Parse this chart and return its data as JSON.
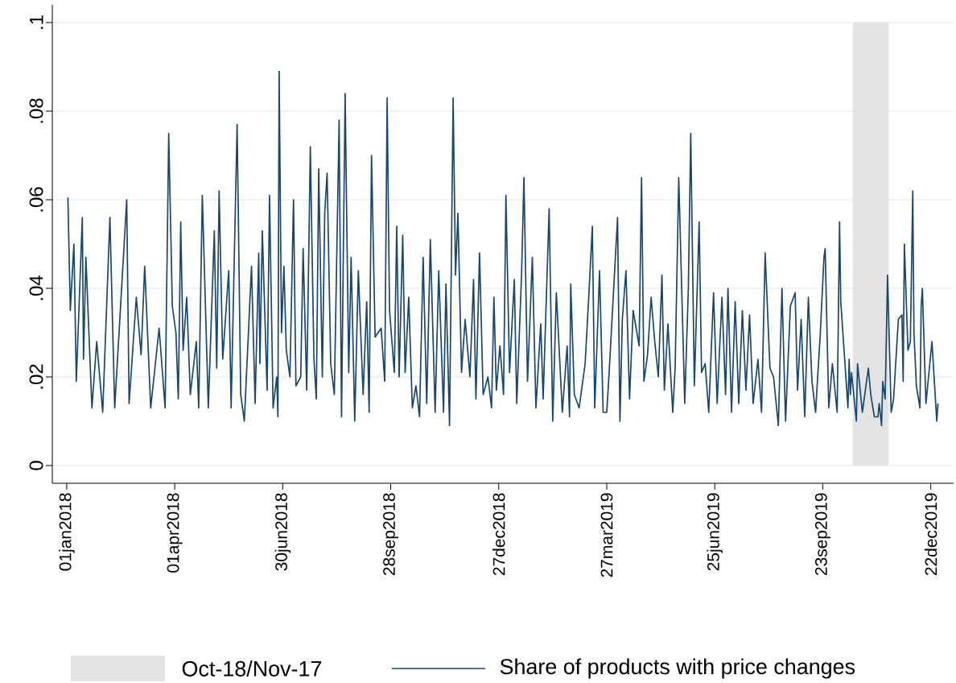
{
  "chart_data": {
    "type": "line",
    "x": [
      "2018-01-02",
      "2018-01-04",
      "2018-01-07",
      "2018-01-09",
      "2018-01-14",
      "2018-01-15",
      "2018-01-17",
      "2018-01-22",
      "2018-01-26",
      "2018-01-31",
      "2018-02-06",
      "2018-02-10",
      "2018-02-20",
      "2018-02-22",
      "2018-02-28",
      "2018-03-04",
      "2018-03-07",
      "2018-03-12",
      "2018-03-19",
      "2018-03-24",
      "2018-03-27",
      "2018-03-30",
      "2018-04-02",
      "2018-04-04",
      "2018-04-06",
      "2018-04-08",
      "2018-04-11",
      "2018-04-14",
      "2018-04-19",
      "2018-04-21",
      "2018-04-24",
      "2018-04-29",
      "2018-05-04",
      "2018-05-06",
      "2018-05-08",
      "2018-05-11",
      "2018-05-16",
      "2018-05-18",
      "2018-05-23",
      "2018-05-26",
      "2018-05-29",
      "2018-06-04",
      "2018-06-07",
      "2018-06-10",
      "2018-06-11",
      "2018-06-13",
      "2018-06-17",
      "2018-06-19",
      "2018-06-22",
      "2018-06-25",
      "2018-06-26",
      "2018-06-27",
      "2018-06-29",
      "2018-07-01",
      "2018-07-03",
      "2018-07-06",
      "2018-07-09",
      "2018-07-11",
      "2018-07-15",
      "2018-07-17",
      "2018-07-20",
      "2018-07-23",
      "2018-07-26",
      "2018-07-28",
      "2018-07-30",
      "2018-08-02",
      "2018-08-04",
      "2018-08-06",
      "2018-08-09",
      "2018-08-12",
      "2018-08-16",
      "2018-08-18",
      "2018-08-21",
      "2018-08-24",
      "2018-08-26",
      "2018-08-29",
      "2018-09-01",
      "2018-09-05",
      "2018-09-08",
      "2018-09-10",
      "2018-09-12",
      "2018-09-15",
      "2018-09-20",
      "2018-09-23",
      "2018-09-25",
      "2018-09-27",
      "2018-10-01",
      "2018-10-03",
      "2018-10-05",
      "2018-10-08",
      "2018-10-10",
      "2018-10-13",
      "2018-10-16",
      "2018-10-19",
      "2018-10-22",
      "2018-10-25",
      "2018-10-28",
      "2018-10-31",
      "2018-11-04",
      "2018-11-07",
      "2018-11-11",
      "2018-11-13",
      "2018-11-16",
      "2018-11-19",
      "2018-11-21",
      "2018-11-23",
      "2018-11-26",
      "2018-11-29",
      "2018-12-03",
      "2018-12-06",
      "2018-12-08",
      "2018-12-11",
      "2018-12-14",
      "2018-12-18",
      "2018-12-21",
      "2018-12-23",
      "2018-12-25",
      "2018-12-28",
      "2018-12-31",
      "2019-01-02",
      "2019-01-05",
      "2019-01-09",
      "2019-01-11",
      "2019-01-15",
      "2019-01-17",
      "2019-01-20",
      "2019-01-24",
      "2019-01-27",
      "2019-01-31",
      "2019-02-02",
      "2019-02-07",
      "2019-02-10",
      "2019-02-13",
      "2019-02-18",
      "2019-02-22",
      "2019-02-24",
      "2019-02-25",
      "2019-02-28",
      "2019-03-04",
      "2019-03-09",
      "2019-03-12",
      "2019-03-15",
      "2019-03-17",
      "2019-03-21",
      "2019-03-24",
      "2019-03-27",
      "2019-03-29",
      "2019-04-03",
      "2019-04-05",
      "2019-04-07",
      "2019-04-09",
      "2019-04-12",
      "2019-04-15",
      "2019-04-18",
      "2019-04-23",
      "2019-04-25",
      "2019-04-27",
      "2019-04-30",
      "2019-05-03",
      "2019-05-06",
      "2019-05-09",
      "2019-05-12",
      "2019-05-14",
      "2019-05-17",
      "2019-05-21",
      "2019-05-23",
      "2019-05-26",
      "2019-05-31",
      "2019-06-03",
      "2019-06-05",
      "2019-06-08",
      "2019-06-12",
      "2019-06-14",
      "2019-06-17",
      "2019-06-20",
      "2019-06-24",
      "2019-06-27",
      "2019-07-01",
      "2019-07-04",
      "2019-07-06",
      "2019-07-09",
      "2019-07-12",
      "2019-07-15",
      "2019-07-18",
      "2019-07-21",
      "2019-07-24",
      "2019-07-27",
      "2019-07-31",
      "2019-08-03",
      "2019-08-06",
      "2019-08-10",
      "2019-08-13",
      "2019-08-17",
      "2019-08-20",
      "2019-08-23",
      "2019-08-27",
      "2019-08-31",
      "2019-09-02",
      "2019-09-05",
      "2019-09-08",
      "2019-09-11",
      "2019-09-14",
      "2019-09-17",
      "2019-09-21",
      "2019-09-24",
      "2019-09-25",
      "2019-09-28",
      "2019-10-01",
      "2019-10-05",
      "2019-10-07",
      "2019-10-08",
      "2019-10-14",
      "2019-10-15",
      "2019-10-16",
      "2019-10-17",
      "2019-10-21",
      "2019-10-22",
      "2019-10-26",
      "2019-10-31",
      "2019-11-02",
      "2019-11-05",
      "2019-11-08",
      "2019-11-09",
      "2019-11-11",
      "2019-11-12",
      "2019-11-14",
      "2019-11-16",
      "2019-11-19",
      "2019-11-21",
      "2019-11-25",
      "2019-11-28",
      "2019-11-29",
      "2019-11-30",
      "2019-12-03",
      "2019-12-05",
      "2019-12-07",
      "2019-12-08",
      "2019-12-10",
      "2019-12-13",
      "2019-12-14",
      "2019-12-15",
      "2019-12-18",
      "2019-12-23",
      "2019-12-27",
      "2019-12-28"
    ],
    "series": [
      {
        "name": "Share of products with price changes",
        "color": "#1a476f",
        "values": [
          0.0605,
          0.035,
          0.05,
          0.019,
          0.056,
          0.024,
          0.047,
          0.013,
          0.028,
          0.012,
          0.056,
          0.013,
          0.06,
          0.014,
          0.038,
          0.025,
          0.045,
          0.013,
          0.031,
          0.013,
          0.075,
          0.036,
          0.03,
          0.015,
          0.055,
          0.026,
          0.038,
          0.016,
          0.028,
          0.013,
          0.061,
          0.013,
          0.053,
          0.022,
          0.062,
          0.024,
          0.044,
          0.013,
          0.077,
          0.016,
          0.01,
          0.045,
          0.014,
          0.048,
          0.023,
          0.053,
          0.017,
          0.061,
          0.013,
          0.02,
          0.011,
          0.089,
          0.03,
          0.045,
          0.026,
          0.02,
          0.06,
          0.018,
          0.02,
          0.049,
          0.017,
          0.072,
          0.024,
          0.015,
          0.067,
          0.02,
          0.057,
          0.066,
          0.023,
          0.016,
          0.078,
          0.011,
          0.084,
          0.021,
          0.047,
          0.01,
          0.044,
          0.016,
          0.037,
          0.012,
          0.07,
          0.029,
          0.031,
          0.019,
          0.083,
          0.035,
          0.021,
          0.054,
          0.02,
          0.052,
          0.021,
          0.038,
          0.013,
          0.018,
          0.011,
          0.047,
          0.014,
          0.051,
          0.012,
          0.044,
          0.012,
          0.041,
          0.009,
          0.083,
          0.043,
          0.057,
          0.021,
          0.033,
          0.02,
          0.042,
          0.015,
          0.048,
          0.016,
          0.02,
          0.013,
          0.038,
          0.017,
          0.027,
          0.016,
          0.061,
          0.021,
          0.042,
          0.014,
          0.043,
          0.065,
          0.019,
          0.047,
          0.013,
          0.032,
          0.015,
          0.058,
          0.01,
          0.039,
          0.012,
          0.027,
          0.011,
          0.041,
          0.016,
          0.013,
          0.023,
          0.038,
          0.054,
          0.013,
          0.044,
          0.012,
          0.012,
          0.021,
          0.046,
          0.056,
          0.01,
          0.033,
          0.044,
          0.015,
          0.035,
          0.027,
          0.065,
          0.019,
          0.025,
          0.038,
          0.028,
          0.02,
          0.043,
          0.017,
          0.032,
          0.012,
          0.022,
          0.065,
          0.014,
          0.04,
          0.075,
          0.018,
          0.055,
          0.021,
          0.023,
          0.012,
          0.039,
          0.014,
          0.038,
          0.016,
          0.04,
          0.012,
          0.037,
          0.014,
          0.035,
          0.017,
          0.034,
          0.014,
          0.024,
          0.012,
          0.048,
          0.022,
          0.02,
          0.009,
          0.04,
          0.01,
          0.036,
          0.039,
          0.017,
          0.033,
          0.011,
          0.038,
          0.019,
          0.012,
          0.03,
          0.047,
          0.049,
          0.013,
          0.023,
          0.012,
          0.055,
          0.037,
          0.013,
          0.024,
          0.016,
          0.021,
          0.01,
          0.023,
          0.012,
          0.022,
          0.016,
          0.011,
          0.011,
          0.014,
          0.009,
          0.019,
          0.015,
          0.043,
          0.012,
          0.015,
          0.033,
          0.034,
          0.019,
          0.05,
          0.026,
          0.028,
          0.062,
          0.03,
          0.018,
          0.013,
          0.036,
          0.04,
          0.014,
          0.028,
          0.01,
          0.014
        ]
      }
    ],
    "xlim": [
      "2017-12-20",
      "2020-01-10"
    ],
    "xticks": [
      {
        "value": "2018-01-01",
        "label": "01jan2018"
      },
      {
        "value": "2018-04-01",
        "label": "01apr2018"
      },
      {
        "value": "2018-06-30",
        "label": "30jun2018"
      },
      {
        "value": "2018-09-28",
        "label": "28sep2018"
      },
      {
        "value": "2018-12-27",
        "label": "27dec2018"
      },
      {
        "value": "2019-03-27",
        "label": "27mar2019"
      },
      {
        "value": "2019-06-25",
        "label": "25jun2019"
      },
      {
        "value": "2019-09-23",
        "label": "23sep2019"
      },
      {
        "value": "2019-12-22",
        "label": "22dec2019"
      }
    ],
    "ylim": [
      -0.004,
      0.104
    ],
    "yticks": [
      0,
      {
        "value": 0.02,
        "label": ".02"
      },
      {
        "value": 0.04,
        "label": ".04"
      },
      {
        "value": 0.06,
        "label": ".06"
      },
      {
        "value": 0.08,
        "label": ".08"
      },
      {
        "value": 0.1,
        "label": ".1"
      }
    ],
    "bands": [
      {
        "axis": "x",
        "from": "2019-10-18",
        "to": "2019-11-17",
        "label": "Oct-18/Nov-17",
        "color": "#e4e4e4"
      }
    ],
    "grid": "y",
    "legend": "bottom"
  }
}
